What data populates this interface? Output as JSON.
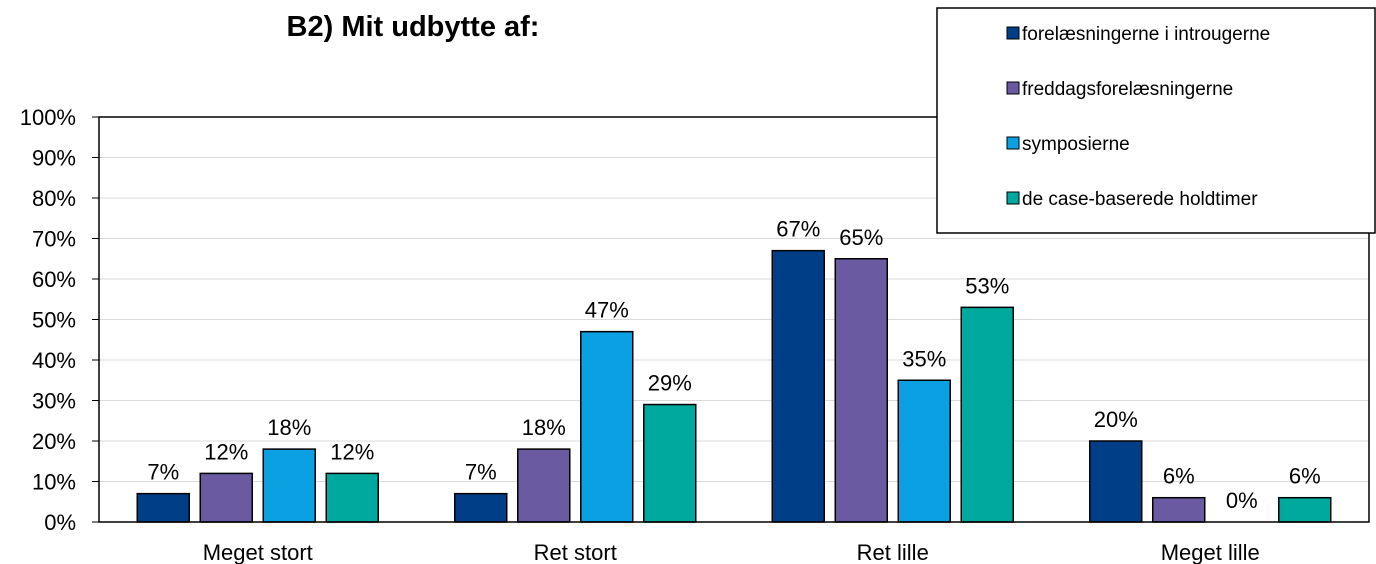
{
  "chart_data": {
    "type": "bar",
    "title": "B2) Mit udbytte af:",
    "xlabel": "",
    "ylabel": "",
    "categories": [
      "Meget stort",
      "Ret stort",
      "Ret lille",
      "Meget lille"
    ],
    "series": [
      {
        "name": "forelæsningerne i introugerne",
        "color": "#003f87",
        "values": [
          7,
          7,
          67,
          20
        ]
      },
      {
        "name": "freddagsforelæsningerne",
        "color": "#6a5aa2",
        "values": [
          12,
          18,
          65,
          6
        ]
      },
      {
        "name": "symposierne",
        "color": "#0aa0e1",
        "values": [
          18,
          47,
          35,
          0
        ]
      },
      {
        "name": "de case-baserede holdtimer",
        "color": "#00a99e",
        "values": [
          12,
          29,
          53,
          6
        ]
      }
    ],
    "data_labels": [
      [
        "7%",
        "7%",
        "67%",
        "20%"
      ],
      [
        "12%",
        "18%",
        "65%",
        "6%"
      ],
      [
        "18%",
        "47%",
        "35%",
        "0%"
      ],
      [
        "12%",
        "29%",
        "53%",
        "6%"
      ]
    ],
    "ylim": [
      0,
      100
    ],
    "y_ticks": [
      "0%",
      "10%",
      "20%",
      "30%",
      "40%",
      "50%",
      "60%",
      "70%",
      "80%",
      "90%",
      "100%"
    ],
    "grid": true,
    "legend_position": "top-right"
  }
}
